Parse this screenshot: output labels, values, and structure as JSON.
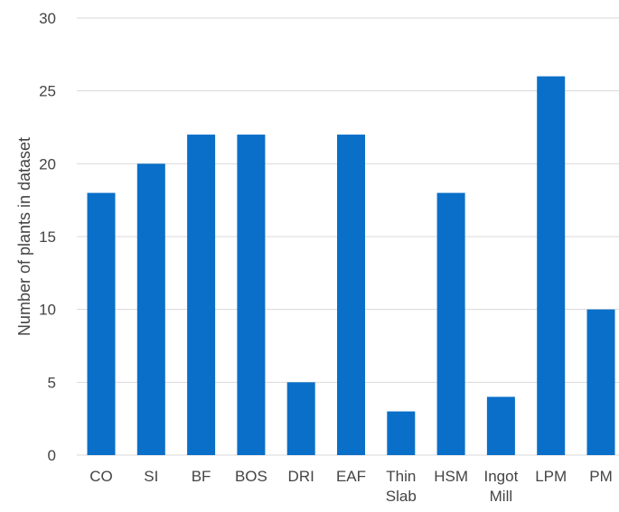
{
  "chart_data": {
    "type": "bar",
    "categories": [
      "CO",
      "SI",
      "BF",
      "BOS",
      "DRI",
      "EAF",
      "Thin Slab",
      "HSM",
      "Ingot Mill",
      "LPM",
      "PM"
    ],
    "category_lines": [
      [
        "CO"
      ],
      [
        "SI"
      ],
      [
        "BF"
      ],
      [
        "BOS"
      ],
      [
        "DRI"
      ],
      [
        "EAF"
      ],
      [
        "Thin",
        "Slab"
      ],
      [
        "HSM"
      ],
      [
        "Ingot",
        "Mill"
      ],
      [
        "LPM"
      ],
      [
        "PM"
      ]
    ],
    "series": [
      {
        "values": [
          18,
          20,
          22,
          22,
          5,
          22,
          3,
          18,
          4,
          26,
          10
        ],
        "color": "#0a6fc8"
      }
    ],
    "title": "",
    "xlabel": "",
    "ylabel": "Number of plants in dataset",
    "ylim": [
      0,
      30
    ],
    "yticks": [
      0,
      5,
      10,
      15,
      20,
      25,
      30
    ],
    "grid": true,
    "legend": "none"
  }
}
